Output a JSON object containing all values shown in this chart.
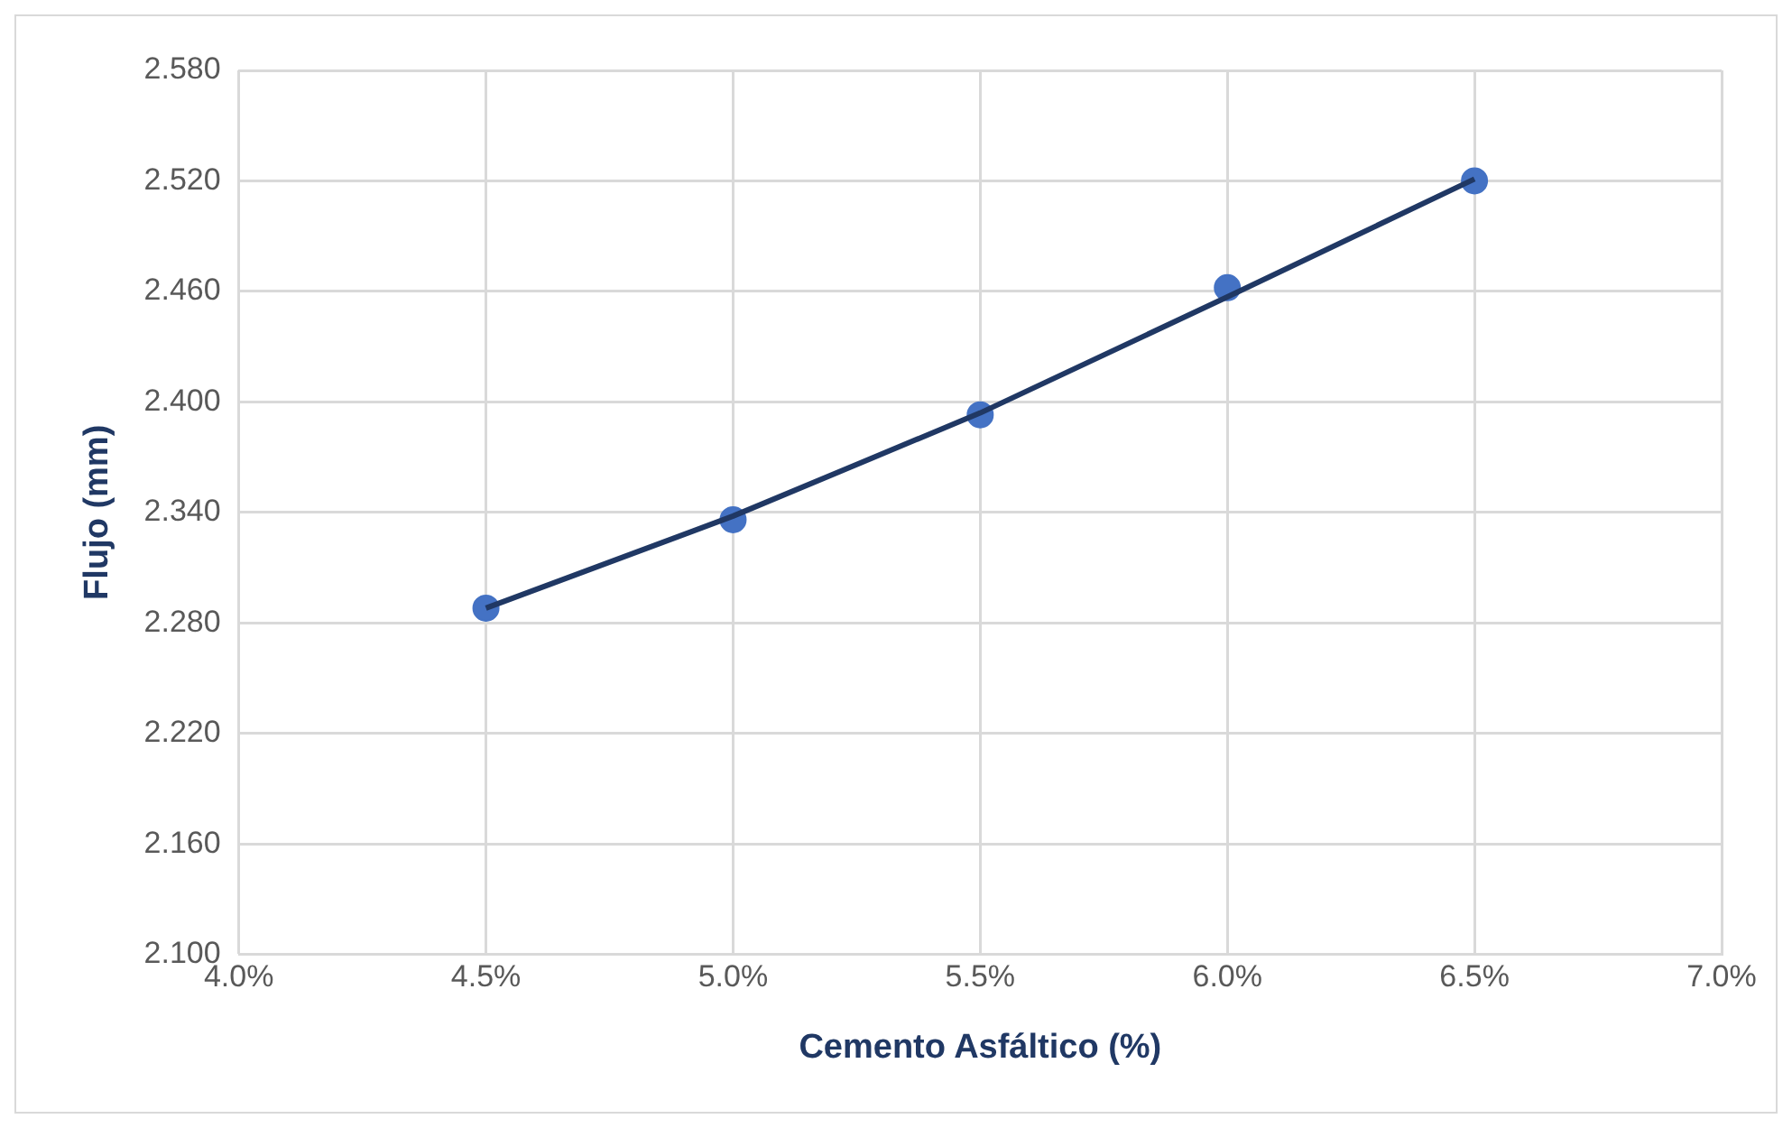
{
  "chart_data": {
    "type": "scatter",
    "xlabel": "Cemento Asfáltico (%)",
    "ylabel": "Flujo (mm)",
    "x": [
      4.5,
      5.0,
      5.5,
      6.0,
      6.5
    ],
    "series": [
      {
        "type": "scatter",
        "color": "#4472c4",
        "values": [
          2.288,
          2.336,
          2.393,
          2.462,
          2.52
        ],
        "marker": "circle"
      },
      {
        "type": "line",
        "color": "#203864",
        "x": [
          4.5,
          5.0,
          5.5,
          6.0,
          6.5
        ],
        "values": [
          2.288,
          2.338,
          2.394,
          2.457,
          2.521
        ],
        "marker": "none"
      }
    ],
    "xlim": [
      4.0,
      7.0
    ],
    "xticks": [
      {
        "value": 4,
        "label": "4.0%"
      },
      {
        "value": 4.5,
        "label": "4.5%"
      },
      {
        "value": 5,
        "label": "5.0%"
      },
      {
        "value": 5.5,
        "label": "5.5%"
      },
      {
        "value": 6,
        "label": "6.0%"
      },
      {
        "value": 6.5,
        "label": "6.5%"
      },
      {
        "value": 7,
        "label": "7.0%"
      }
    ],
    "ylim": [
      2.1,
      2.58
    ],
    "yticks": [
      {
        "value": 2.1,
        "label": "2.100"
      },
      {
        "value": 2.16,
        "label": "2.160"
      },
      {
        "value": 2.22,
        "label": "2.220"
      },
      {
        "value": 2.28,
        "label": "2.280"
      },
      {
        "value": 2.34,
        "label": "2.340"
      },
      {
        "value": 2.4,
        "label": "2.400"
      },
      {
        "value": 2.46,
        "label": "2.460"
      },
      {
        "value": 2.52,
        "label": "2.520"
      },
      {
        "value": 2.58,
        "label": "2.580"
      }
    ],
    "grid": true
  }
}
